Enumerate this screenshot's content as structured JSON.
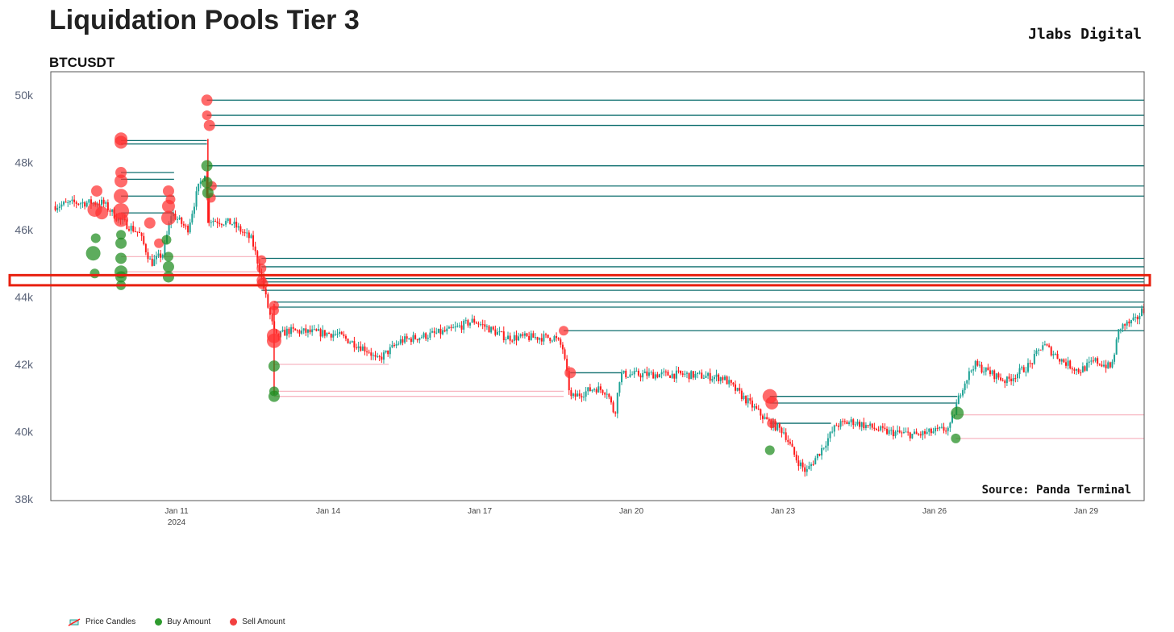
{
  "header": {
    "title": "Liquidation Pools Tier 3",
    "brand": "Jlabs Digital",
    "symbol": "BTCUSDT",
    "source": "Source: Panda Terminal"
  },
  "colors": {
    "up": "#1fa396",
    "down": "#ff1a1a",
    "sell_line": "#0d6e6e",
    "buy_line": "#f7b7c2",
    "buy": "#1f8c1f",
    "sell": "#ff3030",
    "highlight": "#e8200f"
  },
  "legend": [
    {
      "label": "Price Candles"
    },
    {
      "label": "Buy Amount"
    },
    {
      "label": "Sell Amount"
    }
  ],
  "chart_data": {
    "type": "candlestick+scatter",
    "title": "Liquidation Pools Tier 3",
    "ylabel": "",
    "ylim": [
      38,
      50.7
    ],
    "xlim_day_of_jan": [
      8.5,
      30.18
    ],
    "y_ticks": [
      {
        "v": 38,
        "label": "38k"
      },
      {
        "v": 40,
        "label": "40k"
      },
      {
        "v": 42,
        "label": "42k"
      },
      {
        "v": 44,
        "label": "44k"
      },
      {
        "v": 46,
        "label": "46k"
      },
      {
        "v": 48,
        "label": "48k"
      },
      {
        "v": 50,
        "label": "50k"
      }
    ],
    "x_ticks": [
      {
        "d": 11,
        "label": "Jan 11",
        "sub": "2024"
      },
      {
        "d": 14,
        "label": "Jan 14"
      },
      {
        "d": 17,
        "label": "Jan 17"
      },
      {
        "d": 20,
        "label": "Jan 20"
      },
      {
        "d": 23,
        "label": "Jan 23"
      },
      {
        "d": 26,
        "label": "Jan 26"
      },
      {
        "d": 29,
        "label": "Jan 29"
      }
    ],
    "price_path_k": [
      [
        8.6,
        46.7
      ],
      [
        9.02,
        46.8
      ],
      [
        9.58,
        46.8
      ],
      [
        9.9,
        46.3
      ],
      [
        10.3,
        45.9
      ],
      [
        10.54,
        45.0
      ],
      [
        10.78,
        45.3
      ],
      [
        10.94,
        46.5
      ],
      [
        11.26,
        46.0
      ],
      [
        11.46,
        47.2
      ],
      [
        11.6,
        47.7
      ],
      [
        11.68,
        46.3
      ],
      [
        12.13,
        46.2
      ],
      [
        12.53,
        45.7
      ],
      [
        12.69,
        44.8
      ],
      [
        12.85,
        43.7
      ],
      [
        13.0,
        42.8
      ],
      [
        13.25,
        43.0
      ],
      [
        14.2,
        42.9
      ],
      [
        14.85,
        42.4
      ],
      [
        15.0,
        42.1
      ],
      [
        15.48,
        42.7
      ],
      [
        16.44,
        43.0
      ],
      [
        16.92,
        43.3
      ],
      [
        17.56,
        42.8
      ],
      [
        18.52,
        42.8
      ],
      [
        18.68,
        42.5
      ],
      [
        18.84,
        41.0
      ],
      [
        19.32,
        41.3
      ],
      [
        19.56,
        41.2
      ],
      [
        19.71,
        40.5
      ],
      [
        19.82,
        41.7
      ],
      [
        21.07,
        41.7
      ],
      [
        21.86,
        41.6
      ],
      [
        22.34,
        40.9
      ],
      [
        22.74,
        40.3
      ],
      [
        23.06,
        40.0
      ],
      [
        23.3,
        39.2
      ],
      [
        23.5,
        38.8
      ],
      [
        23.77,
        39.4
      ],
      [
        24.1,
        40.2
      ],
      [
        24.42,
        40.3
      ],
      [
        25.06,
        40.0
      ],
      [
        25.7,
        39.9
      ],
      [
        26.34,
        40.1
      ],
      [
        26.58,
        41.3
      ],
      [
        26.82,
        42.0
      ],
      [
        27.46,
        41.5
      ],
      [
        27.94,
        42.0
      ],
      [
        28.18,
        42.6
      ],
      [
        28.58,
        42.1
      ],
      [
        28.9,
        41.8
      ],
      [
        29.22,
        42.1
      ],
      [
        29.54,
        41.9
      ],
      [
        29.7,
        43.1
      ],
      [
        30.02,
        43.3
      ],
      [
        30.15,
        43.6
      ]
    ],
    "levels": [
      {
        "from": 11.6,
        "to": 30.18,
        "price": 49.85,
        "side": "sell"
      },
      {
        "from": 11.6,
        "to": 30.18,
        "price": 49.4,
        "side": "sell"
      },
      {
        "from": 11.65,
        "to": 30.18,
        "price": 49.1,
        "side": "sell"
      },
      {
        "from": 11.6,
        "to": 30.18,
        "price": 47.9,
        "side": "sell"
      },
      {
        "from": 11.65,
        "to": 30.18,
        "price": 47.3,
        "side": "sell"
      },
      {
        "from": 11.65,
        "to": 30.18,
        "price": 47.0,
        "side": "sell"
      },
      {
        "from": 9.9,
        "to": 11.6,
        "price": 48.65,
        "side": "sell"
      },
      {
        "from": 9.9,
        "to": 11.6,
        "price": 48.55,
        "side": "sell"
      },
      {
        "from": 9.9,
        "to": 10.95,
        "price": 47.7,
        "side": "sell"
      },
      {
        "from": 9.9,
        "to": 10.95,
        "price": 47.5,
        "side": "sell"
      },
      {
        "from": 9.9,
        "to": 10.95,
        "price": 47.0,
        "side": "sell"
      },
      {
        "from": 9.9,
        "to": 10.95,
        "price": 46.5,
        "side": "sell"
      },
      {
        "from": 12.68,
        "to": 30.18,
        "price": 45.15,
        "side": "sell"
      },
      {
        "from": 12.68,
        "to": 30.18,
        "price": 44.9,
        "side": "sell"
      },
      {
        "from": 12.68,
        "to": 30.18,
        "price": 44.55,
        "side": "sell"
      },
      {
        "from": 12.68,
        "to": 30.18,
        "price": 44.45,
        "side": "sell"
      },
      {
        "from": 12.68,
        "to": 30.18,
        "price": 44.2,
        "side": "sell"
      },
      {
        "from": 12.93,
        "to": 30.18,
        "price": 43.85,
        "side": "sell"
      },
      {
        "from": 12.93,
        "to": 30.18,
        "price": 43.7,
        "side": "sell"
      },
      {
        "from": 18.66,
        "to": 30.18,
        "price": 43.0,
        "side": "sell"
      },
      {
        "from": 18.79,
        "to": 19.82,
        "price": 41.75,
        "side": "sell"
      },
      {
        "from": 22.74,
        "to": 26.45,
        "price": 41.05,
        "side": "sell"
      },
      {
        "from": 22.74,
        "to": 26.45,
        "price": 40.85,
        "side": "sell"
      },
      {
        "from": 22.74,
        "to": 23.95,
        "price": 40.25,
        "side": "sell"
      },
      {
        "from": 9.9,
        "to": 12.68,
        "price": 45.2,
        "side": "buy"
      },
      {
        "from": 9.9,
        "to": 12.68,
        "price": 44.75,
        "side": "buy"
      },
      {
        "from": 12.93,
        "to": 15.2,
        "price": 42.0,
        "side": "buy"
      },
      {
        "from": 12.93,
        "to": 18.66,
        "price": 41.2,
        "side": "buy"
      },
      {
        "from": 12.93,
        "to": 18.66,
        "price": 41.05,
        "side": "buy"
      },
      {
        "from": 26.45,
        "to": 30.18,
        "price": 40.5,
        "side": "buy"
      },
      {
        "from": 26.42,
        "to": 30.18,
        "price": 39.8,
        "side": "buy"
      }
    ],
    "bubbles": [
      {
        "d": 11.6,
        "p": 49.85,
        "side": "sell",
        "size": 7
      },
      {
        "d": 11.6,
        "p": 49.4,
        "side": "sell",
        "size": 6
      },
      {
        "d": 11.65,
        "p": 49.1,
        "side": "sell",
        "size": 7
      },
      {
        "d": 9.9,
        "p": 48.7,
        "side": "sell",
        "size": 8
      },
      {
        "d": 9.9,
        "p": 48.6,
        "side": "sell",
        "size": 8
      },
      {
        "d": 9.9,
        "p": 47.7,
        "side": "sell",
        "size": 7
      },
      {
        "d": 9.9,
        "p": 47.45,
        "side": "sell",
        "size": 8
      },
      {
        "d": 9.9,
        "p": 47.0,
        "side": "sell",
        "size": 9
      },
      {
        "d": 9.9,
        "p": 46.55,
        "side": "sell",
        "size": 10
      },
      {
        "d": 9.9,
        "p": 46.3,
        "side": "sell",
        "size": 9
      },
      {
        "d": 9.42,
        "p": 47.15,
        "side": "sell",
        "size": 7
      },
      {
        "d": 9.38,
        "p": 46.6,
        "side": "sell",
        "size": 9
      },
      {
        "d": 9.52,
        "p": 46.5,
        "side": "sell",
        "size": 8
      },
      {
        "d": 10.47,
        "p": 46.2,
        "side": "sell",
        "size": 7
      },
      {
        "d": 10.65,
        "p": 45.6,
        "side": "sell",
        "size": 6
      },
      {
        "d": 10.84,
        "p": 47.15,
        "side": "sell",
        "size": 7
      },
      {
        "d": 10.88,
        "p": 46.9,
        "side": "sell",
        "size": 6
      },
      {
        "d": 10.84,
        "p": 46.7,
        "side": "sell",
        "size": 8
      },
      {
        "d": 10.84,
        "p": 46.35,
        "side": "sell",
        "size": 9
      },
      {
        "d": 11.7,
        "p": 47.3,
        "side": "sell",
        "size": 6
      },
      {
        "d": 11.68,
        "p": 46.95,
        "side": "sell",
        "size": 6
      },
      {
        "d": 12.68,
        "p": 45.1,
        "side": "sell",
        "size": 6
      },
      {
        "d": 12.68,
        "p": 44.85,
        "side": "sell",
        "size": 6
      },
      {
        "d": 12.68,
        "p": 44.5,
        "side": "sell",
        "size": 6
      },
      {
        "d": 12.7,
        "p": 44.4,
        "side": "sell",
        "size": 7
      },
      {
        "d": 12.93,
        "p": 43.75,
        "side": "sell",
        "size": 6
      },
      {
        "d": 12.93,
        "p": 43.6,
        "side": "sell",
        "size": 6
      },
      {
        "d": 12.93,
        "p": 42.85,
        "side": "sell",
        "size": 9
      },
      {
        "d": 12.93,
        "p": 42.7,
        "side": "sell",
        "size": 9
      },
      {
        "d": 18.66,
        "p": 43.0,
        "side": "sell",
        "size": 6
      },
      {
        "d": 18.79,
        "p": 41.75,
        "side": "sell",
        "size": 7
      },
      {
        "d": 22.74,
        "p": 41.05,
        "side": "sell",
        "size": 9
      },
      {
        "d": 22.78,
        "p": 40.85,
        "side": "sell",
        "size": 8
      },
      {
        "d": 22.78,
        "p": 40.25,
        "side": "sell",
        "size": 6
      },
      {
        "d": 9.4,
        "p": 45.75,
        "side": "buy",
        "size": 6
      },
      {
        "d": 9.35,
        "p": 45.3,
        "side": "buy",
        "size": 9
      },
      {
        "d": 9.38,
        "p": 44.7,
        "side": "buy",
        "size": 6
      },
      {
        "d": 9.9,
        "p": 45.85,
        "side": "buy",
        "size": 6
      },
      {
        "d": 9.9,
        "p": 45.6,
        "side": "buy",
        "size": 7
      },
      {
        "d": 9.9,
        "p": 45.15,
        "side": "buy",
        "size": 7
      },
      {
        "d": 9.9,
        "p": 44.75,
        "side": "buy",
        "size": 8
      },
      {
        "d": 9.9,
        "p": 44.6,
        "side": "buy",
        "size": 7
      },
      {
        "d": 9.9,
        "p": 44.35,
        "side": "buy",
        "size": 6
      },
      {
        "d": 10.8,
        "p": 45.7,
        "side": "buy",
        "size": 6
      },
      {
        "d": 10.84,
        "p": 45.2,
        "side": "buy",
        "size": 6
      },
      {
        "d": 10.84,
        "p": 44.9,
        "side": "buy",
        "size": 7
      },
      {
        "d": 10.84,
        "p": 44.6,
        "side": "buy",
        "size": 7
      },
      {
        "d": 11.6,
        "p": 47.9,
        "side": "buy",
        "size": 7
      },
      {
        "d": 11.6,
        "p": 47.4,
        "side": "buy",
        "size": 7
      },
      {
        "d": 11.62,
        "p": 47.1,
        "side": "buy",
        "size": 7
      },
      {
        "d": 12.93,
        "p": 41.95,
        "side": "buy",
        "size": 7
      },
      {
        "d": 12.93,
        "p": 41.2,
        "side": "buy",
        "size": 6
      },
      {
        "d": 12.93,
        "p": 41.05,
        "side": "buy",
        "size": 7
      },
      {
        "d": 22.74,
        "p": 39.45,
        "side": "buy",
        "size": 6
      },
      {
        "d": 26.45,
        "p": 40.55,
        "side": "buy",
        "size": 8
      },
      {
        "d": 26.42,
        "p": 39.8,
        "side": "buy",
        "size": 6
      }
    ],
    "highlight_zone_k": [
      44.35,
      44.65
    ],
    "legend_position": "bottom-left"
  }
}
